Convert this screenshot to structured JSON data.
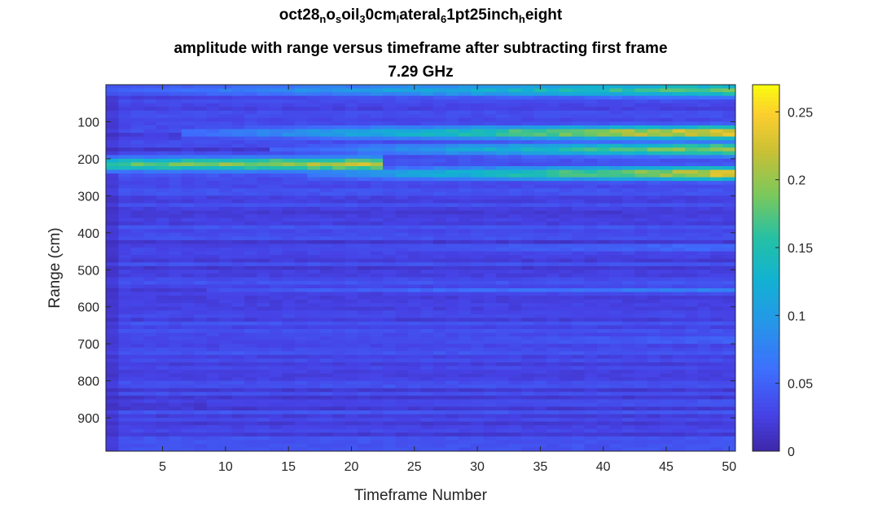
{
  "chart_data": {
    "type": "heatmap",
    "title": {
      "parts": [
        {
          "text": "oct28"
        },
        {
          "sub": "n"
        },
        {
          "text": "o"
        },
        {
          "sub": "s"
        },
        {
          "text": "oil"
        },
        {
          "sub": "3"
        },
        {
          "text": "0cm"
        },
        {
          "sub": "l"
        },
        {
          "text": "ateral"
        },
        {
          "sub": "6"
        },
        {
          "text": "1pt25inch"
        },
        {
          "sub": "h"
        },
        {
          "text": "eight"
        }
      ]
    },
    "subtitle": "amplitude with range versus timeframe after subtracting first frame",
    "subtitle2": "7.29 GHz",
    "xlabel": "Timeframe Number",
    "ylabel": "Range (cm)",
    "x_range": [
      0.5,
      50.5
    ],
    "y_range": [
      0,
      990
    ],
    "x_ticks": [
      5,
      10,
      15,
      20,
      25,
      30,
      35,
      40,
      45,
      50
    ],
    "y_ticks": [
      100,
      200,
      300,
      400,
      500,
      600,
      700,
      800,
      900
    ],
    "y_reversed": true,
    "colormap": "parula",
    "clim": [
      0,
      0.27
    ],
    "colorbar_ticks": [
      0,
      0.05,
      0.1,
      0.15,
      0.2,
      0.25
    ],
    "colorbar_location": "right",
    "frames": 50,
    "range_bin_cm": 10,
    "features": [
      {
        "range_cm": 15,
        "frame_start": 2,
        "frame_end": 50,
        "value_start": 0.05,
        "value_end": 0.18
      },
      {
        "range_cm": 130,
        "frame_start": 8,
        "frame_end": 50,
        "value_start": 0.06,
        "value_end": 0.25
      },
      {
        "range_cm": 175,
        "frame_start": 15,
        "frame_end": 50,
        "value_start": 0.05,
        "value_end": 0.21
      },
      {
        "range_cm": 215,
        "frame_start": 1,
        "frame_end": 22,
        "value_start": 0.17,
        "value_end": 0.23
      },
      {
        "range_cm": 240,
        "frame_start": 18,
        "frame_end": 50,
        "value_start": 0.08,
        "value_end": 0.24
      },
      {
        "range_cm": 440,
        "frame_start": 10,
        "frame_end": 50,
        "value_start": 0.03,
        "value_end": 0.07
      },
      {
        "range_cm": 555,
        "frame_start": 10,
        "frame_end": 50,
        "value_start": 0.04,
        "value_end": 0.08
      },
      {
        "range_cm": 690,
        "frame_start": 10,
        "frame_end": 50,
        "value_start": 0.03,
        "value_end": 0.06
      },
      {
        "range_cm": 860,
        "frame_start": 10,
        "frame_end": 50,
        "value_start": 0.03,
        "value_end": 0.05
      }
    ],
    "background_value": 0.03
  }
}
